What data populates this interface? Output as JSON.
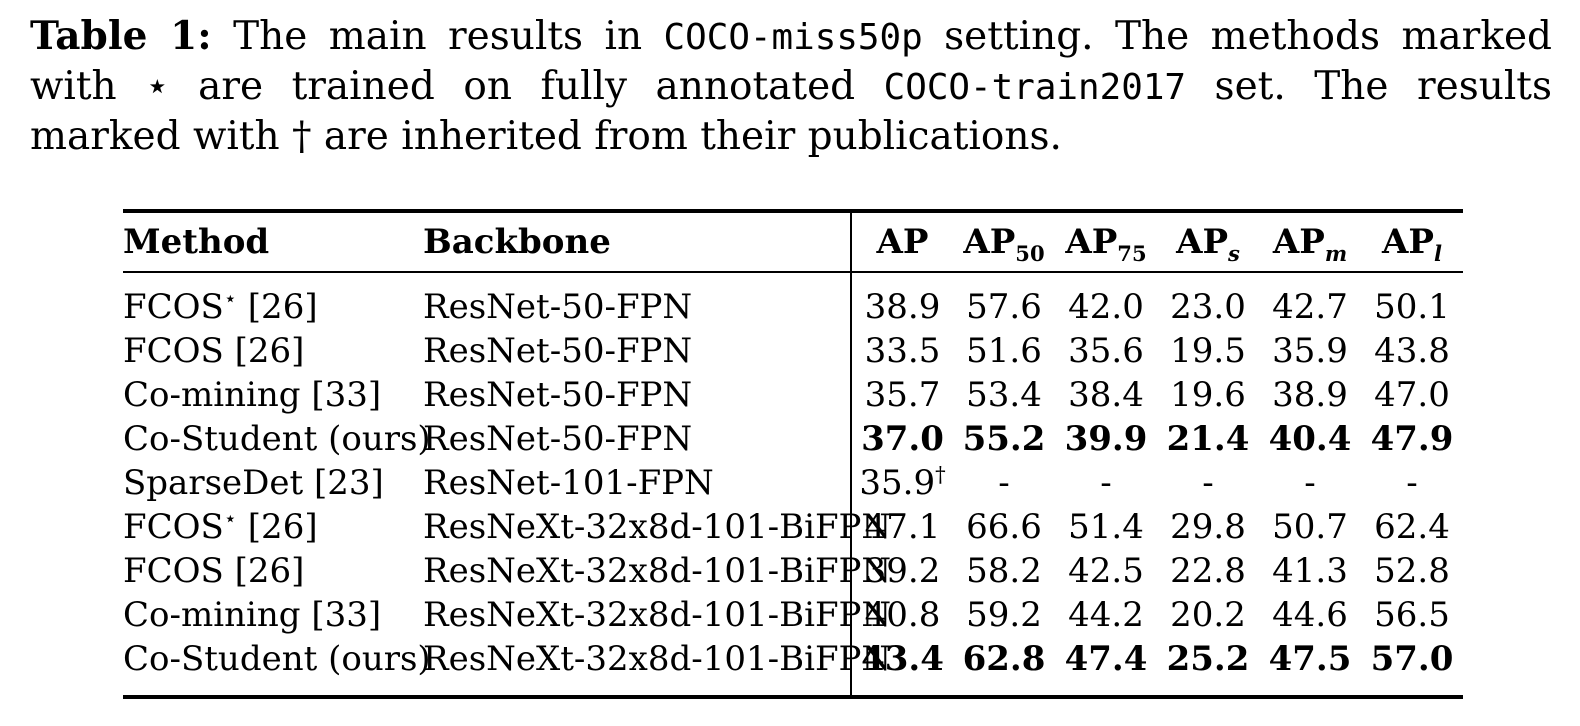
{
  "colors": {
    "text": "#000000",
    "background": "#ffffff",
    "rule": "#000000"
  },
  "caption": {
    "segments": [
      {
        "text": "Table 1:",
        "style": "bold"
      },
      {
        "text": " The main results in ",
        "style": "normal"
      },
      {
        "text": "COCO-miss50p",
        "style": "mono"
      },
      {
        "text": " setting. The methods marked with ",
        "style": "normal"
      },
      {
        "text": "⋆",
        "style": "normal"
      },
      {
        "text": " are trained on fully annotated ",
        "style": "normal"
      },
      {
        "text": "COCO-train2017",
        "style": "mono"
      },
      {
        "text": " set. The results marked with ",
        "style": "normal"
      },
      {
        "text": "†",
        "style": "normal"
      },
      {
        "text": " are inherited from their publications.",
        "style": "normal"
      }
    ]
  },
  "table": {
    "header": {
      "method": "Method",
      "backbone": "Backbone",
      "metrics": [
        {
          "base": "AP",
          "sub": "",
          "italic_sub": false
        },
        {
          "base": "AP",
          "sub": "50",
          "italic_sub": false
        },
        {
          "base": "AP",
          "sub": "75",
          "italic_sub": false
        },
        {
          "base": "AP",
          "sub": "s",
          "italic_sub": true
        },
        {
          "base": "AP",
          "sub": "m",
          "italic_sub": true
        },
        {
          "base": "AP",
          "sub": "l",
          "italic_sub": true
        }
      ]
    },
    "rows": [
      {
        "method": "FCOS",
        "method_sup": "⋆",
        "method_cite": "[26]",
        "backbone": "ResNet-50-FPN",
        "bold_values": false,
        "values": [
          {
            "v": "38.9"
          },
          {
            "v": "57.6"
          },
          {
            "v": "42.0"
          },
          {
            "v": "23.0"
          },
          {
            "v": "42.7"
          },
          {
            "v": "50.1"
          }
        ]
      },
      {
        "method": "FCOS",
        "method_sup": "",
        "method_cite": "[26]",
        "backbone": "ResNet-50-FPN",
        "bold_values": false,
        "values": [
          {
            "v": "33.5"
          },
          {
            "v": "51.6"
          },
          {
            "v": "35.6"
          },
          {
            "v": "19.5"
          },
          {
            "v": "35.9"
          },
          {
            "v": "43.8"
          }
        ]
      },
      {
        "method": "Co-mining",
        "method_sup": "",
        "method_cite": "[33]",
        "backbone": "ResNet-50-FPN",
        "bold_values": false,
        "values": [
          {
            "v": "35.7"
          },
          {
            "v": "53.4"
          },
          {
            "v": "38.4"
          },
          {
            "v": "19.6"
          },
          {
            "v": "38.9"
          },
          {
            "v": "47.0"
          }
        ]
      },
      {
        "method": "Co-Student",
        "method_sup": "",
        "method_cite": "(ours)",
        "backbone": "ResNet-50-FPN",
        "bold_values": true,
        "values": [
          {
            "v": "37.0"
          },
          {
            "v": "55.2"
          },
          {
            "v": "39.9"
          },
          {
            "v": "21.4"
          },
          {
            "v": "40.4"
          },
          {
            "v": "47.9"
          }
        ]
      },
      {
        "method": "SparseDet",
        "method_sup": "",
        "method_cite": "[23]",
        "backbone": "ResNet-101-FPN",
        "bold_values": false,
        "values": [
          {
            "v": "35.9",
            "sup": "†"
          },
          {
            "v": "-"
          },
          {
            "v": "-"
          },
          {
            "v": "-"
          },
          {
            "v": "-"
          },
          {
            "v": "-"
          }
        ]
      },
      {
        "method": "FCOS",
        "method_sup": "⋆",
        "method_cite": "[26]",
        "backbone": "ResNeXt-32x8d-101-BiFPN",
        "bold_values": false,
        "values": [
          {
            "v": "47.1"
          },
          {
            "v": "66.6"
          },
          {
            "v": "51.4"
          },
          {
            "v": "29.8"
          },
          {
            "v": "50.7"
          },
          {
            "v": "62.4"
          }
        ]
      },
      {
        "method": "FCOS",
        "method_sup": "",
        "method_cite": "[26]",
        "backbone": "ResNeXt-32x8d-101-BiFPN",
        "bold_values": false,
        "values": [
          {
            "v": "39.2"
          },
          {
            "v": "58.2"
          },
          {
            "v": "42.5"
          },
          {
            "v": "22.8"
          },
          {
            "v": "41.3"
          },
          {
            "v": "52.8"
          }
        ]
      },
      {
        "method": "Co-mining",
        "method_sup": "",
        "method_cite": "[33]",
        "backbone": "ResNeXt-32x8d-101-BiFPN",
        "bold_values": false,
        "values": [
          {
            "v": "40.8"
          },
          {
            "v": "59.2"
          },
          {
            "v": "44.2"
          },
          {
            "v": "20.2"
          },
          {
            "v": "44.6"
          },
          {
            "v": "56.5"
          }
        ]
      },
      {
        "method": "Co-Student",
        "method_sup": "",
        "method_cite": "(ours)",
        "backbone": "ResNeXt-32x8d-101-BiFPN",
        "bold_values": true,
        "values": [
          {
            "v": "43.4"
          },
          {
            "v": "62.8"
          },
          {
            "v": "47.4"
          },
          {
            "v": "25.2"
          },
          {
            "v": "47.5"
          },
          {
            "v": "57.0"
          }
        ]
      }
    ]
  }
}
